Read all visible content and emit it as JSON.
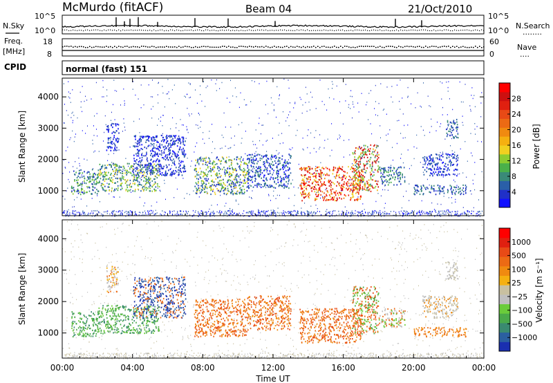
{
  "header": {
    "station": "McMurdo (fitACF)",
    "beam": "Beam 04",
    "date": "21/Oct/2010"
  },
  "nsky_panel": {
    "left_label": "N.Sky",
    "right_label": "N.Search",
    "right_marker": "........",
    "left_ticks": [
      "10^5",
      "10^0"
    ],
    "right_ticks": [
      "10^5",
      "10^0"
    ]
  },
  "freq_panel": {
    "left_label_line1": "Freq.",
    "left_label_line2": "[MHz]",
    "right_label": "Nave",
    "right_marker": "....",
    "left_ticks": [
      "18",
      "8"
    ],
    "right_ticks": [
      "60",
      "0"
    ]
  },
  "cpid_panel": {
    "label": "CPID",
    "value": "normal (fast) 151"
  },
  "chart_data": [
    {
      "type": "heatmap",
      "name": "power",
      "xlabel": "Time UT",
      "ylabel": "Slant Range [km]",
      "x_ticks": [
        "00:00",
        "04:00",
        "08:00",
        "12:00",
        "16:00",
        "20:00",
        "00:00"
      ],
      "y_ticks": [
        1000,
        2000,
        3000,
        4000
      ],
      "ylim": [
        200,
        4600
      ],
      "xlim_hours": [
        0,
        24
      ],
      "colorbar": {
        "label": "Power [dB]",
        "ticks": [
          "4",
          "8",
          "12",
          "16",
          "20",
          "24",
          "28"
        ],
        "colors": [
          "#1010ff",
          "#2030c8",
          "#2a5fa8",
          "#3a8a78",
          "#4ab04a",
          "#8ccc30",
          "#f0d020",
          "#f5b010",
          "#f08a10",
          "#ec6a14",
          "#e84a16",
          "#e02010",
          "#cc1010",
          "#ff0000"
        ]
      }
    },
    {
      "type": "heatmap",
      "name": "velocity",
      "xlabel": "Time UT",
      "ylabel": "Slant Range [km]",
      "x_ticks": [
        "00:00",
        "04:00",
        "08:00",
        "12:00",
        "16:00",
        "20:00",
        "00:00"
      ],
      "y_ticks": [
        1000,
        2000,
        3000,
        4000
      ],
      "ylim": [
        200,
        4600
      ],
      "xlim_hours": [
        0,
        24
      ],
      "colorbar": {
        "label": "Velocity [m s⁻¹]",
        "ticks": [
          "1000",
          "500",
          "100",
          "25",
          "−25",
          "−100",
          "−500",
          "−1000"
        ],
        "colors": [
          "#1a2fb0",
          "#2b5fa0",
          "#3a8a70",
          "#4aaa4a",
          "#6acc3a",
          "#bfbfbf",
          "#c8c0a0",
          "#f5b010",
          "#f08a10",
          "#ec6a14",
          "#e84a16",
          "#e02010",
          "#ff0000"
        ]
      }
    }
  ]
}
